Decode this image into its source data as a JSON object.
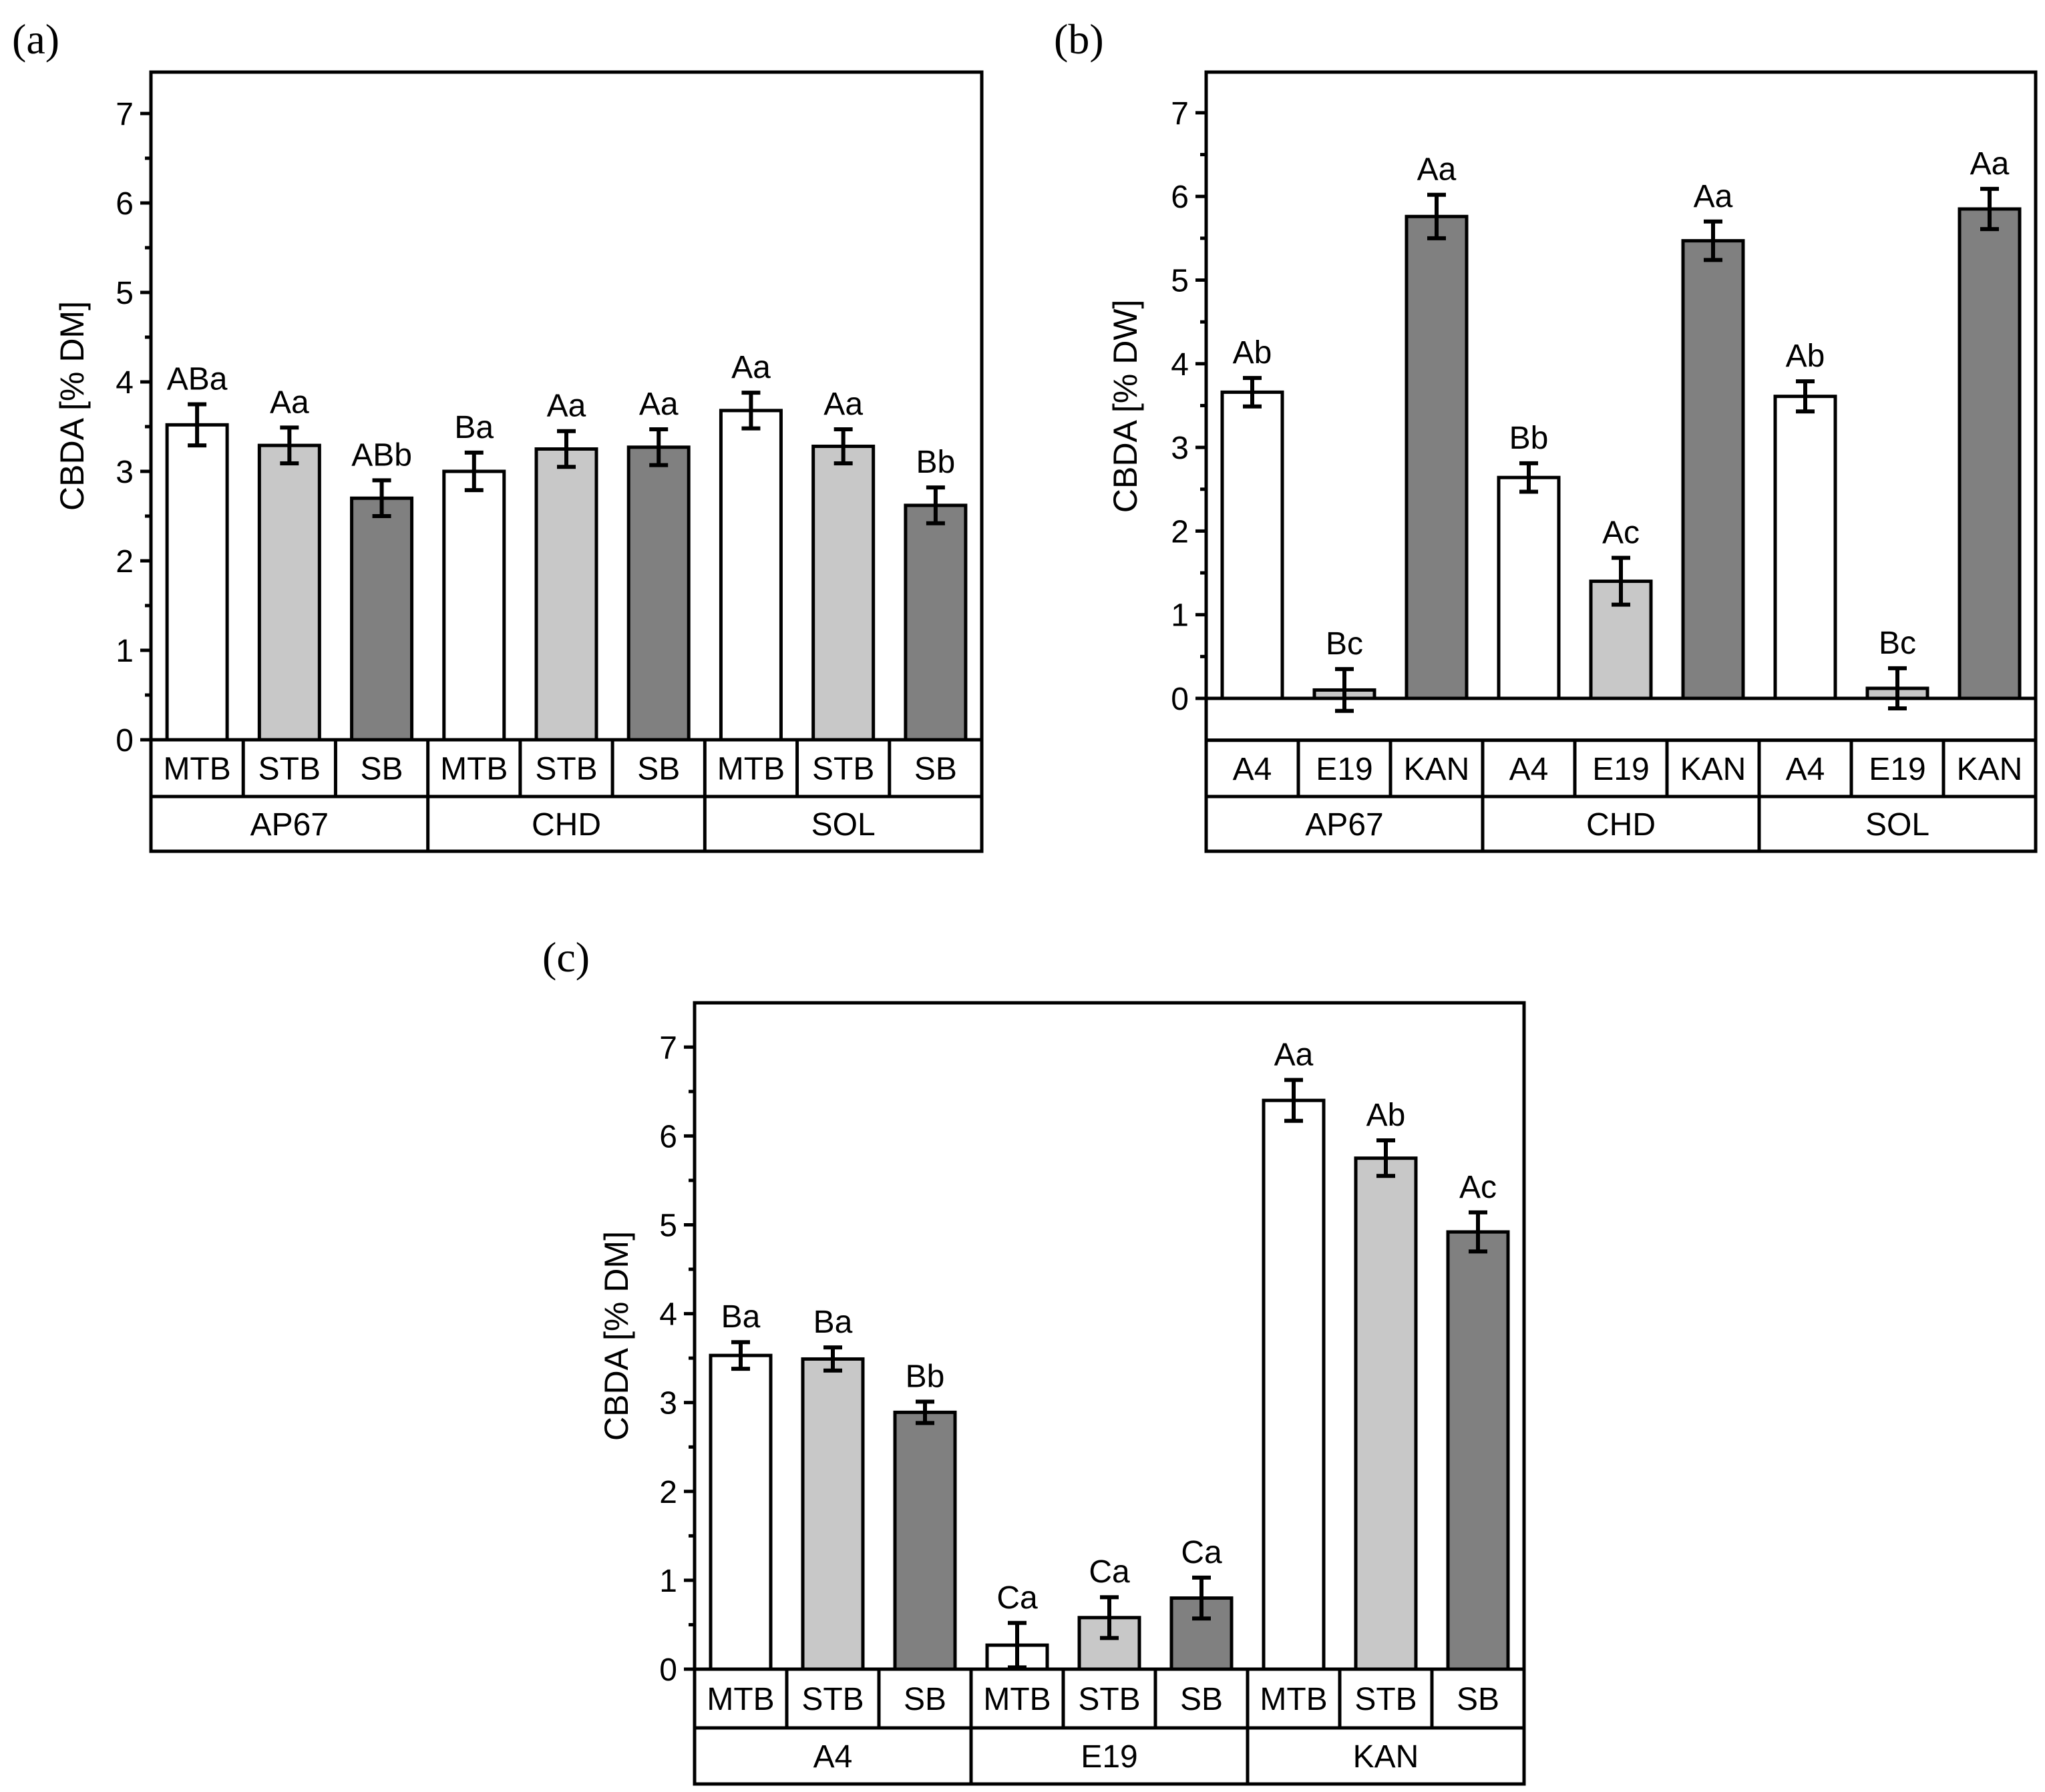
{
  "chart_data": [
    {
      "type": "bar",
      "panel": "(a)",
      "ylabel": "CBDA [% DM]",
      "ylim": [
        0,
        7.5
      ],
      "yticks": [
        0,
        1,
        2,
        3,
        4,
        5,
        6,
        7
      ],
      "groups": [
        "AP67",
        "CHD",
        "SOL"
      ],
      "categories": [
        "MTB",
        "STB",
        "SB",
        "MTB",
        "STB",
        "SB",
        "MTB",
        "STB",
        "SB"
      ],
      "values": [
        3.52,
        3.29,
        2.7,
        3.0,
        3.25,
        3.27,
        3.68,
        3.28,
        2.62
      ],
      "errors": [
        0.23,
        0.2,
        0.2,
        0.21,
        0.2,
        0.2,
        0.2,
        0.19,
        0.2
      ],
      "labels": [
        "ABa",
        "Aa",
        "ABb",
        "Ba",
        "Aa",
        "Aa",
        "Aa",
        "Aa",
        "Bb"
      ],
      "colors": [
        "#ffffff",
        "#c8c8c8",
        "#808080",
        "#ffffff",
        "#c8c8c8",
        "#808080",
        "#ffffff",
        "#c8c8c8",
        "#808080"
      ]
    },
    {
      "type": "bar",
      "panel": "(b)",
      "ylabel": "CBDA [% DW]",
      "ylim": [
        -0.5,
        7.5
      ],
      "yticks": [
        0,
        1,
        2,
        3,
        4,
        5,
        6,
        7
      ],
      "groups": [
        "AP67",
        "CHD",
        "SOL"
      ],
      "categories": [
        "A4",
        "E19",
        "KAN",
        "A4",
        "E19",
        "KAN",
        "A4",
        "E19",
        "KAN"
      ],
      "values": [
        3.66,
        0.1,
        5.76,
        2.64,
        1.4,
        5.47,
        3.61,
        0.12,
        5.85
      ],
      "errors": [
        0.17,
        0.25,
        0.26,
        0.17,
        0.28,
        0.23,
        0.18,
        0.24,
        0.24
      ],
      "labels": [
        "Ab",
        "Bc",
        "Aa",
        "Bb",
        "Ac",
        "Aa",
        "Ab",
        "Bc",
        "Aa"
      ],
      "colors": [
        "#ffffff",
        "#c8c8c8",
        "#808080",
        "#ffffff",
        "#c8c8c8",
        "#808080",
        "#ffffff",
        "#c8c8c8",
        "#808080"
      ]
    },
    {
      "type": "bar",
      "panel": "(c)",
      "ylabel": "CBDA [% DM]",
      "ylim": [
        0,
        7.5
      ],
      "yticks": [
        0,
        1,
        2,
        3,
        4,
        5,
        6,
        7
      ],
      "groups": [
        "A4",
        "E19",
        "KAN"
      ],
      "categories": [
        "MTB",
        "STB",
        "SB",
        "MTB",
        "STB",
        "SB",
        "MTB",
        "STB",
        "SB"
      ],
      "values": [
        3.53,
        3.49,
        2.89,
        0.27,
        0.58,
        0.8,
        6.4,
        5.75,
        4.92
      ],
      "errors": [
        0.15,
        0.13,
        0.12,
        0.25,
        0.23,
        0.23,
        0.23,
        0.2,
        0.22
      ],
      "labels": [
        "Ba",
        "Ba",
        "Bb",
        "Ca",
        "Ca",
        "Ca",
        "Aa",
        "Ab",
        "Ac"
      ],
      "colors": [
        "#ffffff",
        "#c8c8c8",
        "#808080",
        "#ffffff",
        "#c8c8c8",
        "#808080",
        "#ffffff",
        "#c8c8c8",
        "#808080"
      ]
    }
  ]
}
